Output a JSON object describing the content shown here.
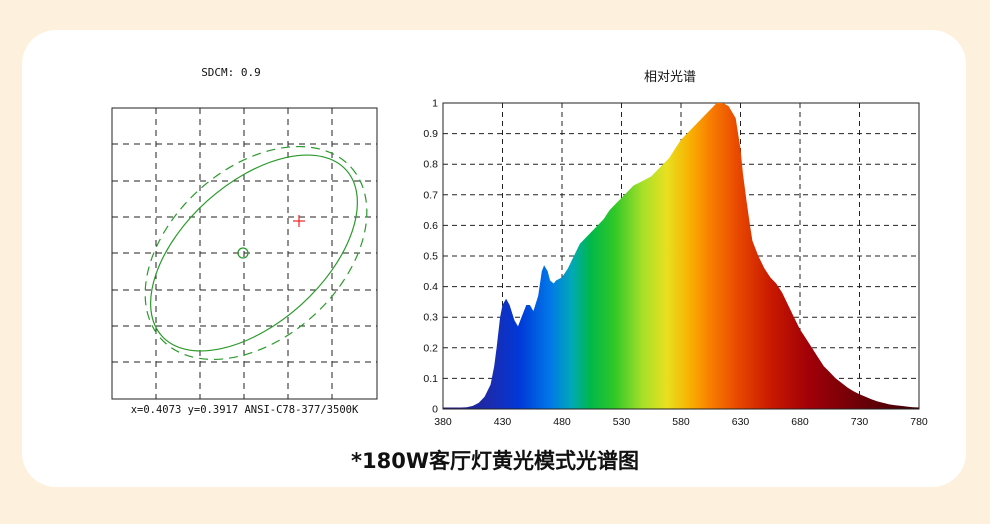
{
  "sdcm_panel": {
    "title": "SDCM: 0.9",
    "coordinates_label": "x=0.4073 y=0.3917 ANSI-C78-377/3500K"
  },
  "caption": "*180W客厅灯黄光模式光谱图",
  "chart_data": {
    "type": "area",
    "title": "相对光谱",
    "xlabel": "",
    "ylabel": "",
    "xlim": [
      380,
      780
    ],
    "ylim": [
      0,
      1
    ],
    "x_ticks": [
      380,
      430,
      480,
      530,
      580,
      630,
      680,
      730,
      780
    ],
    "y_ticks": [
      0,
      0.1,
      0.2,
      0.3,
      0.4,
      0.5,
      0.6,
      0.7,
      0.8,
      0.9,
      1
    ],
    "y_tick_labels": [
      "0",
      "0.1",
      "0.2",
      "0.3",
      "0.4",
      "0.5",
      "0.6",
      "0.7",
      "0.8",
      "0.9",
      "1"
    ],
    "grid": true,
    "series": [
      {
        "x": [
          380,
          385,
          390,
          395,
          400,
          405,
          410,
          415,
          420,
          423,
          425,
          428,
          430,
          433,
          436,
          440,
          443,
          446,
          450,
          453,
          456,
          460,
          463,
          465,
          468,
          470,
          473,
          475,
          480,
          485,
          490,
          495,
          500,
          505,
          510,
          515,
          520,
          525,
          530,
          535,
          540,
          545,
          550,
          555,
          560,
          565,
          570,
          575,
          580,
          585,
          590,
          595,
          600,
          605,
          610,
          615,
          620,
          623,
          626,
          628,
          630,
          632,
          635,
          638,
          640,
          645,
          650,
          655,
          660,
          665,
          670,
          675,
          680,
          685,
          690,
          695,
          700,
          705,
          710,
          715,
          720,
          725,
          730,
          735,
          740,
          745,
          750,
          755,
          760,
          765,
          770,
          775,
          780
        ],
        "values": [
          0.005,
          0.005,
          0.005,
          0.005,
          0.006,
          0.01,
          0.02,
          0.04,
          0.08,
          0.14,
          0.2,
          0.3,
          0.34,
          0.36,
          0.34,
          0.29,
          0.27,
          0.3,
          0.34,
          0.34,
          0.32,
          0.37,
          0.45,
          0.47,
          0.45,
          0.42,
          0.41,
          0.42,
          0.43,
          0.46,
          0.5,
          0.54,
          0.56,
          0.58,
          0.6,
          0.62,
          0.65,
          0.67,
          0.69,
          0.71,
          0.73,
          0.74,
          0.75,
          0.76,
          0.78,
          0.8,
          0.82,
          0.85,
          0.88,
          0.9,
          0.92,
          0.94,
          0.96,
          0.98,
          1.0,
          1.0,
          0.99,
          0.97,
          0.95,
          0.9,
          0.85,
          0.77,
          0.68,
          0.6,
          0.55,
          0.5,
          0.46,
          0.43,
          0.41,
          0.38,
          0.34,
          0.3,
          0.26,
          0.23,
          0.2,
          0.17,
          0.14,
          0.12,
          0.1,
          0.085,
          0.07,
          0.058,
          0.048,
          0.04,
          0.032,
          0.025,
          0.02,
          0.015,
          0.012,
          0.01,
          0.008,
          0.006,
          0.005
        ]
      }
    ]
  }
}
